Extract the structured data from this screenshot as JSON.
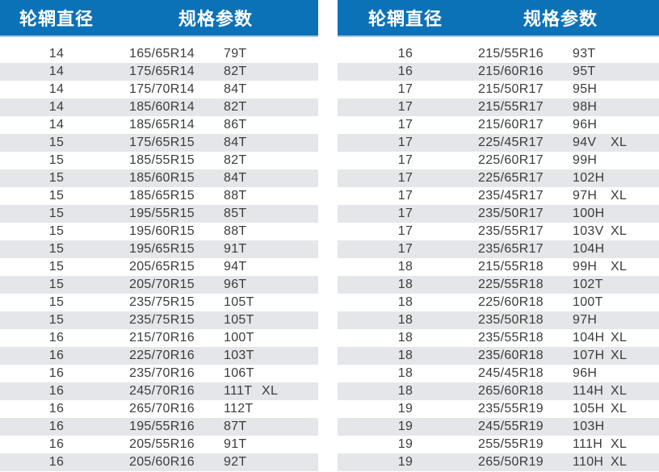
{
  "colors": {
    "header_bg": "#0b72b8",
    "header_edge": "#a9c9e5",
    "stripe": "#e4e6e9",
    "text": "#3c3c3c",
    "header_text": "#ffffff"
  },
  "tables": [
    {
      "headers": {
        "rim_diameter": "轮辋直径",
        "spec_params": "规格参数"
      },
      "rows": [
        [
          "14",
          "165/65R14",
          "79T",
          ""
        ],
        [
          "14",
          "175/65R14",
          "82T",
          ""
        ],
        [
          "14",
          "175/70R14",
          "84T",
          ""
        ],
        [
          "14",
          "185/60R14",
          "82T",
          ""
        ],
        [
          "14",
          "185/65R14",
          "86T",
          ""
        ],
        [
          "15",
          "175/65R15",
          "84T",
          ""
        ],
        [
          "15",
          "185/55R15",
          "82T",
          ""
        ],
        [
          "15",
          "185/60R15",
          "84T",
          ""
        ],
        [
          "15",
          "185/65R15",
          "88T",
          ""
        ],
        [
          "15",
          "195/55R15",
          "85T",
          ""
        ],
        [
          "15",
          "195/60R15",
          "88T",
          ""
        ],
        [
          "15",
          "195/65R15",
          "91T",
          ""
        ],
        [
          "15",
          "205/65R15",
          "94T",
          ""
        ],
        [
          "15",
          "205/70R15",
          "96T",
          ""
        ],
        [
          "15",
          "235/75R15",
          "105T",
          ""
        ],
        [
          "15",
          "235/75R15",
          "105T",
          ""
        ],
        [
          "16",
          "215/70R16",
          "100T",
          ""
        ],
        [
          "16",
          "225/70R16",
          "103T",
          ""
        ],
        [
          "16",
          "235/70R16",
          "106T",
          ""
        ],
        [
          "16",
          "245/70R16",
          "111T",
          "XL"
        ],
        [
          "16",
          "265/70R16",
          "112T",
          ""
        ],
        [
          "16",
          "195/55R16",
          "87T",
          ""
        ],
        [
          "16",
          "205/55R16",
          "91T",
          ""
        ],
        [
          "16",
          "205/60R16",
          "92T",
          ""
        ]
      ]
    },
    {
      "headers": {
        "rim_diameter": "轮辋直径",
        "spec_params": "规格参数"
      },
      "rows": [
        [
          "16",
          "215/55R16",
          "93T",
          ""
        ],
        [
          "16",
          "215/60R16",
          "95T",
          ""
        ],
        [
          "17",
          "215/50R17",
          "95H",
          ""
        ],
        [
          "17",
          "215/55R17",
          "98H",
          ""
        ],
        [
          "17",
          "215/60R17",
          "96H",
          ""
        ],
        [
          "17",
          "225/45R17",
          "94V",
          "XL"
        ],
        [
          "17",
          "225/60R17",
          "99H",
          ""
        ],
        [
          "17",
          "225/65R17",
          "102H",
          ""
        ],
        [
          "17",
          "235/45R17",
          "97H",
          "XL"
        ],
        [
          "17",
          "235/50R17",
          "100H",
          ""
        ],
        [
          "17",
          "235/55R17",
          "103V",
          "XL"
        ],
        [
          "17",
          "235/65R17",
          "104H",
          ""
        ],
        [
          "18",
          "215/55R18",
          "99H",
          "XL"
        ],
        [
          "18",
          "225/55R18",
          "102T",
          ""
        ],
        [
          "18",
          "225/60R18",
          "100T",
          ""
        ],
        [
          "18",
          "235/50R18",
          "97H",
          ""
        ],
        [
          "18",
          "235/55R18",
          "104H",
          "XL"
        ],
        [
          "18",
          "235/60R18",
          "107H",
          "XL"
        ],
        [
          "18",
          "245/45R18",
          "96H",
          ""
        ],
        [
          "18",
          "265/60R18",
          "114H",
          "XL"
        ],
        [
          "19",
          "235/55R19",
          "105H",
          "XL"
        ],
        [
          "19",
          "245/55R19",
          "103H",
          ""
        ],
        [
          "19",
          "255/55R19",
          "111H",
          "XL"
        ],
        [
          "19",
          "265/50R19",
          "110H",
          "XL"
        ]
      ]
    }
  ]
}
